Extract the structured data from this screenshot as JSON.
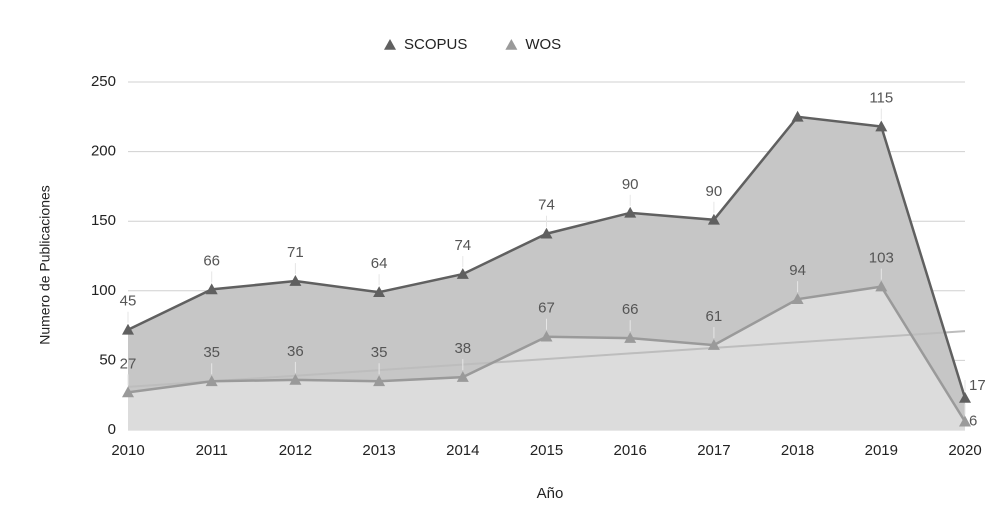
{
  "chart_data": {
    "type": "stacked_area",
    "x_label": "Año",
    "y_label": "Numero de Publicaciones",
    "categories": [
      "2010",
      "2011",
      "2012",
      "2013",
      "2014",
      "2015",
      "2016",
      "2017",
      "2018",
      "2019",
      "2020"
    ],
    "series": [
      {
        "name": "WOS",
        "color": "#9a9a9a",
        "fill": "#dcdcdc",
        "values": [
          27,
          35,
          36,
          35,
          38,
          67,
          66,
          61,
          94,
          103,
          6
        ]
      },
      {
        "name": "SCOPUS",
        "color": "#606060",
        "fill": "#c6c6c6",
        "values": [
          45,
          66,
          71,
          64,
          74,
          74,
          90,
          90,
          131,
          115,
          17
        ],
        "value_labels": [
          "45",
          "66",
          "71",
          "64",
          "74",
          "74",
          "90",
          "90",
          null,
          "115",
          "17"
        ]
      }
    ],
    "trendline": {
      "color": "#bdbdbd",
      "values": [
        31,
        71
      ]
    },
    "legend": "top",
    "ylim": [
      0,
      250
    ],
    "yticks": [
      0,
      50,
      100,
      150,
      200,
      250
    ],
    "grid": true
  }
}
